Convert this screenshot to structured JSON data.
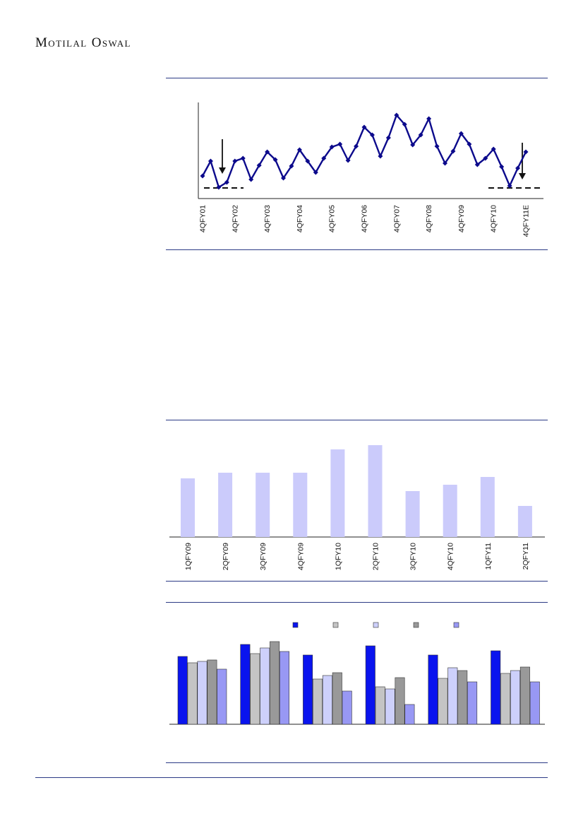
{
  "header": {
    "brand": "Motilal Oswal"
  },
  "chart_data": [
    {
      "type": "line",
      "x_labels": [
        "4QFY01",
        "4QFY02",
        "4QFY03",
        "4QFY04",
        "4QFY05",
        "4QFY06",
        "4QFY07",
        "4QFY08",
        "4QFY09",
        "4QFY10",
        "4QFY11E"
      ],
      "series": [
        {
          "values": [
            249,
            228,
            265,
            258,
            228,
            224,
            254,
            234,
            215,
            226,
            252,
            235,
            212,
            228,
            244,
            224,
            208,
            204,
            227,
            207,
            180,
            191,
            221,
            195,
            163,
            176,
            205,
            191,
            168,
            207,
            231,
            214,
            189,
            204,
            233,
            224,
            211,
            236,
            263,
            238,
            215
          ]
        }
      ],
      "ylim": [
        285,
        145
      ],
      "annotations": [
        "down-arrow",
        "down-arrow",
        "dashed-line",
        "dashed-line"
      ]
    },
    {
      "type": "bar",
      "categories": [
        "1QFY09",
        "2QFY09",
        "3QFY09",
        "4QFY09",
        "1QFY10",
        "2QFY10",
        "3QFY10",
        "4QFY10",
        "1QFY11",
        "2QFY11"
      ],
      "values": [
        83,
        91,
        91,
        91,
        124,
        130,
        65,
        74,
        85,
        44
      ],
      "ylim": [
        0,
        140
      ]
    },
    {
      "type": "bar",
      "groups": 6,
      "series": [
        {
          "color": "#0a14ee",
          "values": [
            96,
            113,
            98,
            111,
            98,
            104
          ]
        },
        {
          "color": "#c4c4c4",
          "values": [
            87,
            100,
            64,
            53,
            65,
            72
          ]
        },
        {
          "color": "#cdd0fb",
          "values": [
            89,
            108,
            69,
            50,
            80,
            76
          ]
        },
        {
          "color": "#999999",
          "values": [
            91,
            117,
            73,
            66,
            76,
            81
          ]
        },
        {
          "color": "#9898f4",
          "values": [
            78,
            103,
            47,
            28,
            60,
            60
          ]
        }
      ],
      "legend": "top",
      "ylim": [
        0,
        125
      ]
    }
  ]
}
